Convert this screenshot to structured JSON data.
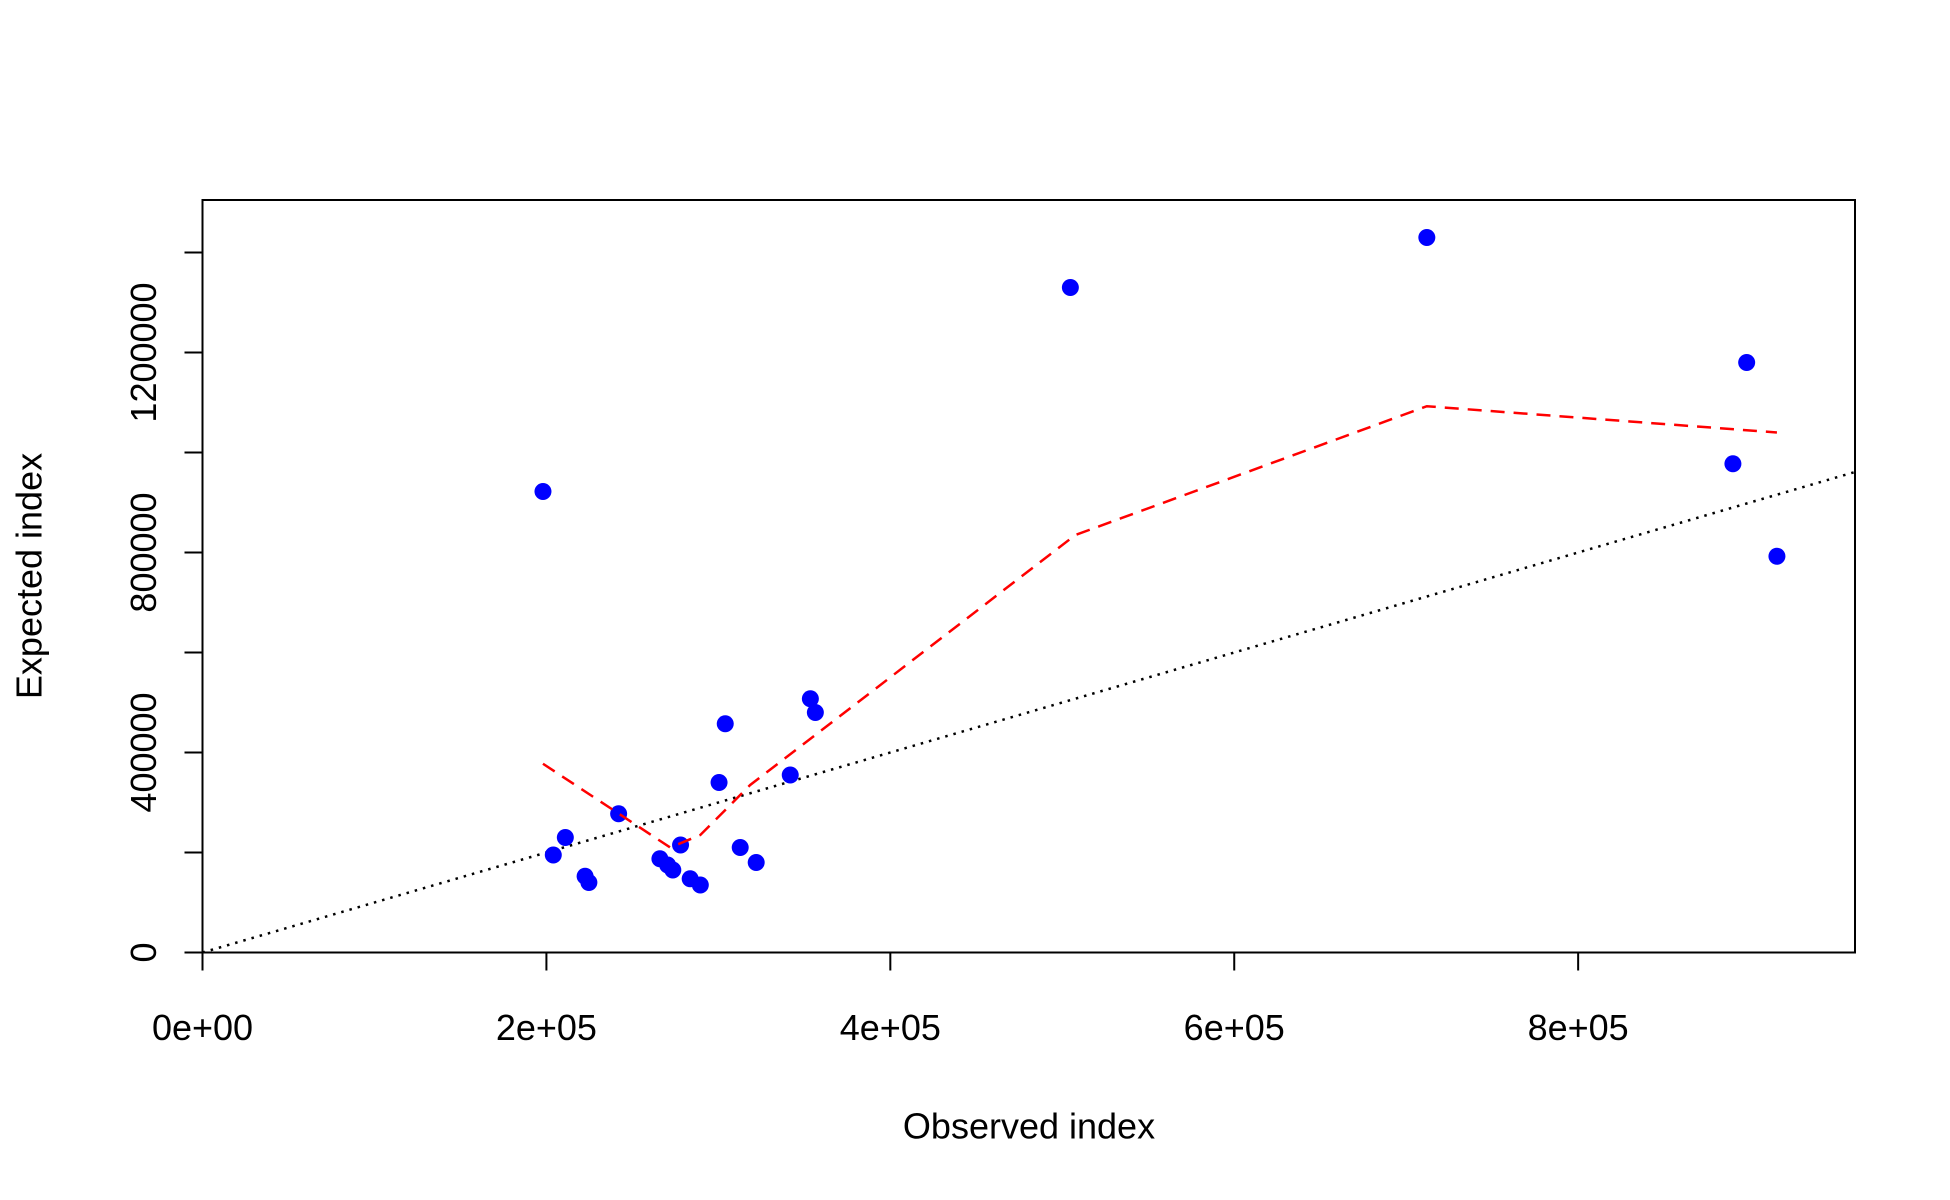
{
  "chart_data": {
    "type": "scatter",
    "x_label": "Observed index",
    "y_label": "Expected index",
    "xlim": [
      0,
      961000
    ],
    "ylim": [
      0,
      1505000
    ],
    "xticks": [
      {
        "value": 0,
        "label": "0e+00"
      },
      {
        "value": 200000,
        "label": "2e+05"
      },
      {
        "value": 400000,
        "label": "4e+05"
      },
      {
        "value": 600000,
        "label": "6e+05"
      },
      {
        "value": 800000,
        "label": "8e+05"
      }
    ],
    "yticks": [
      0,
      {
        "value": 200000,
        "label": null
      },
      400000,
      {
        "value": 600000,
        "label": null
      },
      800000,
      {
        "value": 1000000,
        "label": null
      },
      1200000,
      {
        "value": 1400000,
        "label": null
      }
    ],
    "series": [
      {
        "color": "#0000ff",
        "x": [
          198000,
          204000,
          211000,
          222500,
          224700,
          242000,
          266000,
          270500,
          273500,
          278000,
          283600,
          289500,
          300400,
          304000,
          312700,
          322000,
          341800,
          353500,
          356400,
          504700,
          712000,
          890000,
          898000,
          915600
        ],
        "values": [
          922000,
          195000,
          230000,
          152500,
          140000,
          277500,
          187500,
          175000,
          165000,
          215000,
          147500,
          135000,
          340000,
          457500,
          210000,
          180000,
          355000,
          507500,
          480000,
          1330000,
          1430000,
          977500,
          1180000,
          792500
        ]
      },
      {
        "style": "dashed",
        "color": "#ff0000",
        "x": [
          198000,
          272000,
          289500,
          318500,
          356400,
          507600,
          712000,
          915600
        ],
        "values": [
          377500,
          210000,
          235000,
          335000,
          435000,
          835000,
          1092500,
          1040000
        ]
      }
    ],
    "reference_line": {
      "slope": 1,
      "intercept": 0,
      "color": "#000000",
      "style": "dotted"
    }
  }
}
